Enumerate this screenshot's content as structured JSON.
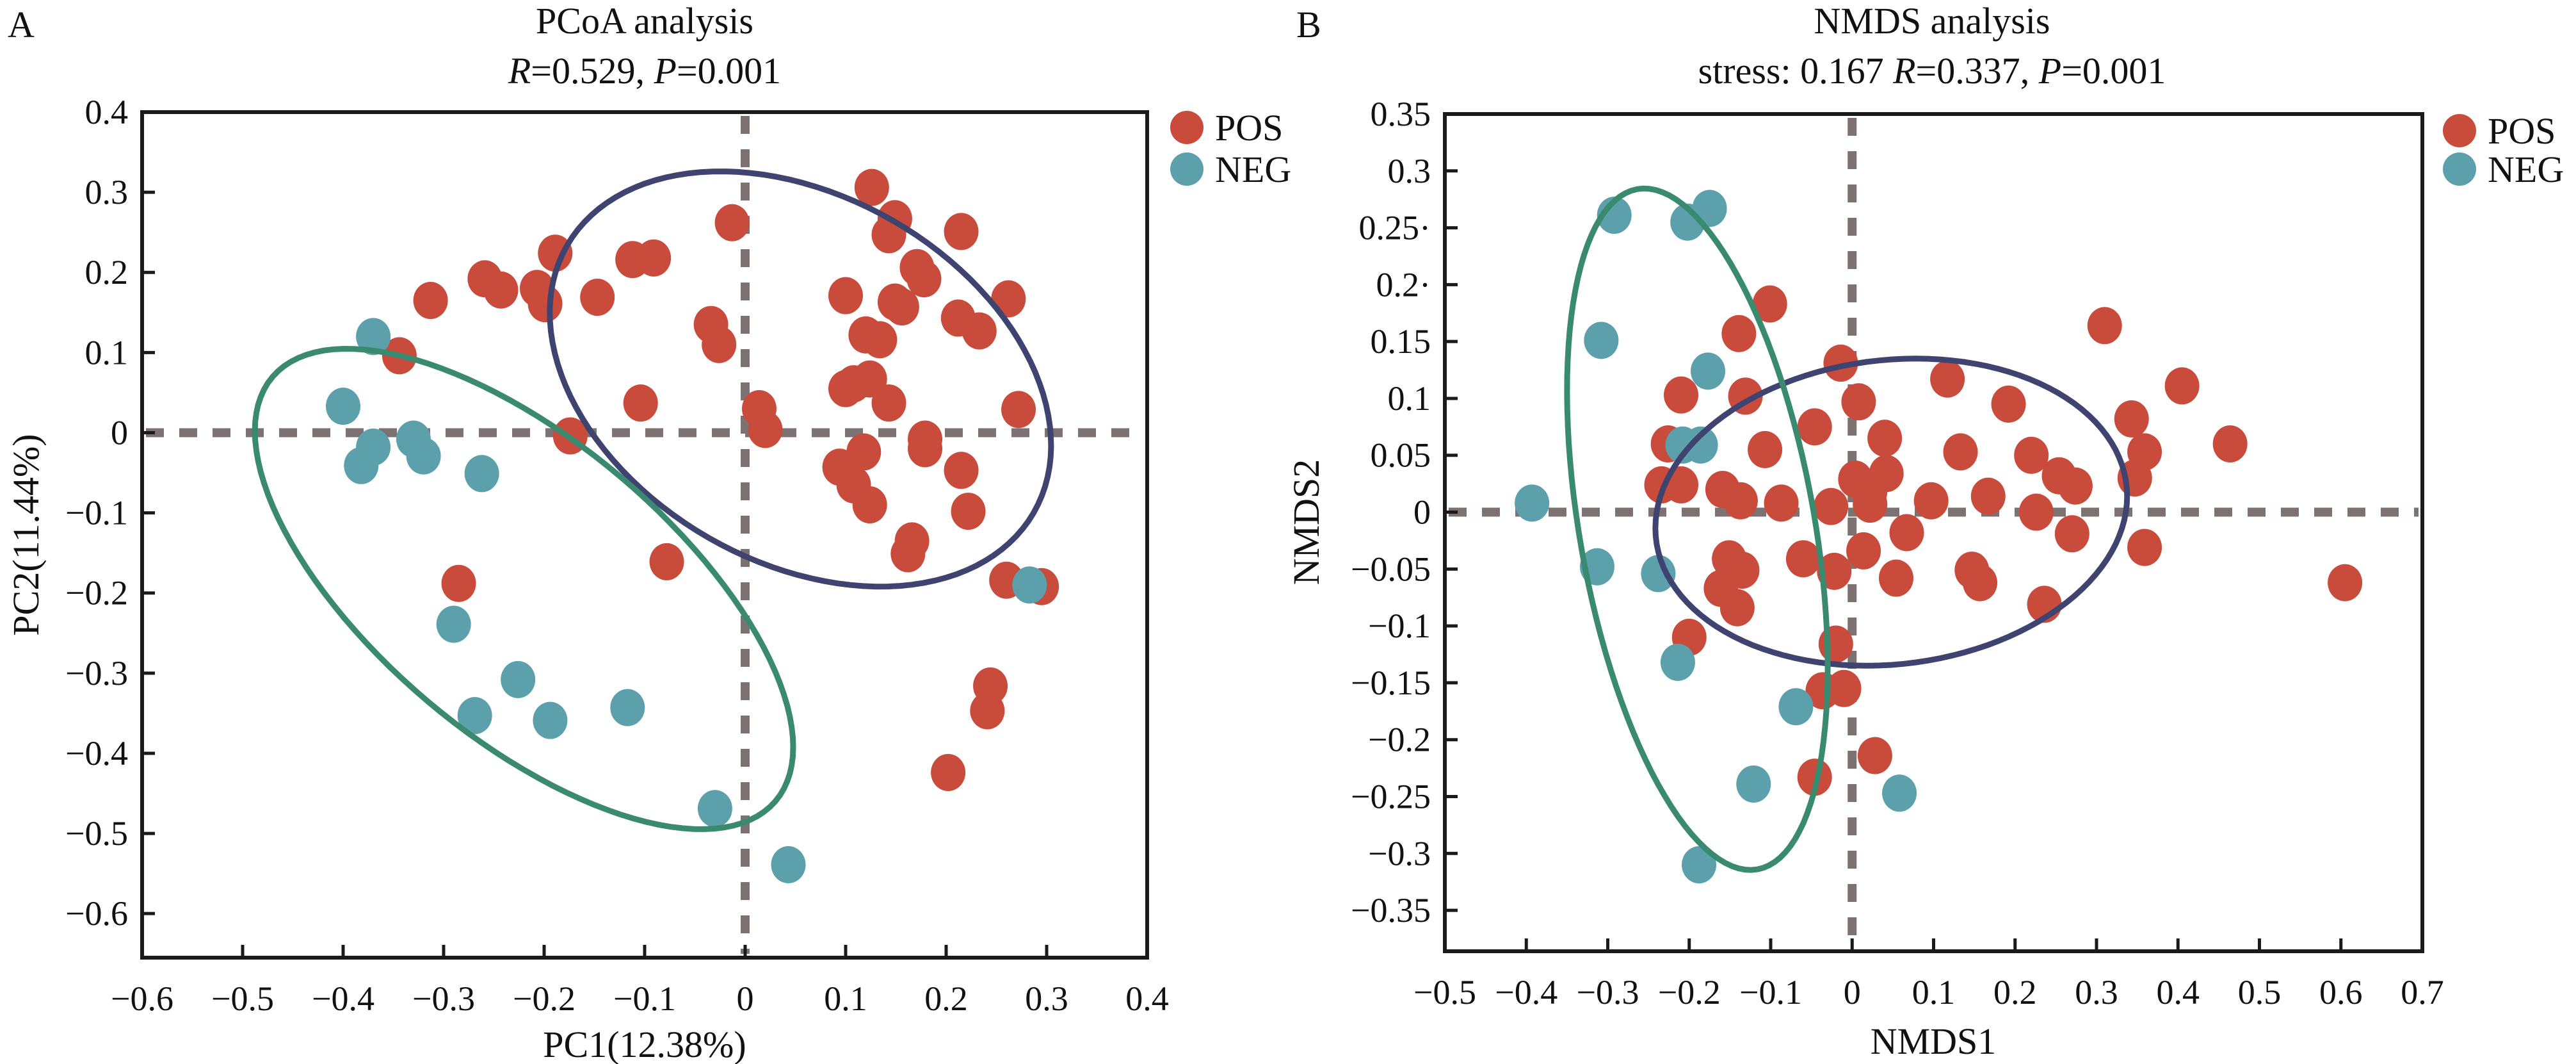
{
  "colors": {
    "pos": "#c84b3c",
    "neg": "#5ba0ab",
    "pos_ellipse": "#3f4370",
    "neg_ellipse": "#3a8a70",
    "zero_line": "#7d7272"
  },
  "legend": {
    "pos": "POS",
    "neg": "NEG"
  },
  "chart_data": [
    {
      "type": "scatter",
      "panel_label": "A",
      "title": "PCoA analysis",
      "subtitle": {
        "r_label": "R",
        "r_value": "=0.529, ",
        "p_label": "P",
        "p_value": "=0.001"
      },
      "xlabel": "PC1(12.38%)",
      "ylabel": "PC2(11.44%)",
      "xlim": [
        -0.6,
        0.4
      ],
      "ylim": [
        -0.655,
        0.4
      ],
      "xticks": [
        -0.6,
        -0.5,
        -0.4,
        -0.3,
        -0.2,
        -0.1,
        0,
        0.1,
        0.2,
        0.3,
        0.4
      ],
      "xtick_labels": [
        "−0.6",
        "−0.5",
        "−0.4",
        "−0.3",
        "−0.2",
        "−0.1",
        "0",
        "0.1",
        "0.2",
        "0.3",
        "0.4"
      ],
      "yticks": [
        0.4,
        0.3,
        0.2,
        0.1,
        0,
        -0.1,
        -0.2,
        -0.3,
        -0.4,
        -0.5,
        -0.6
      ],
      "ytick_labels": [
        "0.4",
        "0.3",
        "0.2",
        "0.1",
        "0",
        "−0.1",
        "−0.2",
        "−0.3",
        "−0.4",
        "−0.5",
        "−0.6"
      ],
      "grid": false,
      "legend_position": "outside-top-right",
      "reference_lines": {
        "x": 0,
        "y": 0
      },
      "series": [
        {
          "name": "POS",
          "points": [
            [
              -0.313,
              0.165
            ],
            [
              -0.259,
              0.192
            ],
            [
              -0.243,
              0.178
            ],
            [
              -0.207,
              0.18
            ],
            [
              -0.199,
              0.161
            ],
            [
              -0.189,
              0.224
            ],
            [
              -0.147,
              0.169
            ],
            [
              -0.112,
              0.216
            ],
            [
              -0.091,
              0.218
            ],
            [
              -0.013,
              0.262
            ],
            [
              -0.034,
              0.135
            ],
            [
              -0.026,
              0.11
            ],
            [
              -0.344,
              0.096
            ],
            [
              -0.174,
              -0.004
            ],
            [
              -0.104,
              0.037
            ],
            [
              0.014,
              0.03
            ],
            [
              0.02,
              0.004
            ],
            [
              0.126,
              0.306
            ],
            [
              0.149,
              0.267
            ],
            [
              0.143,
              0.247
            ],
            [
              0.215,
              0.251
            ],
            [
              0.171,
              0.206
            ],
            [
              0.178,
              0.192
            ],
            [
              0.149,
              0.163
            ],
            [
              0.156,
              0.157
            ],
            [
              0.1,
              0.171
            ],
            [
              0.212,
              0.143
            ],
            [
              0.233,
              0.127
            ],
            [
              0.262,
              0.167
            ],
            [
              0.12,
              0.122
            ],
            [
              0.134,
              0.116
            ],
            [
              0.1,
              0.055
            ],
            [
              0.108,
              0.061
            ],
            [
              0.124,
              0.067
            ],
            [
              0.143,
              0.037
            ],
            [
              0.272,
              0.029
            ],
            [
              0.179,
              -0.008
            ],
            [
              0.179,
              -0.02
            ],
            [
              0.118,
              -0.024
            ],
            [
              0.094,
              -0.043
            ],
            [
              0.108,
              -0.065
            ],
            [
              0.124,
              -0.09
            ],
            [
              0.215,
              -0.047
            ],
            [
              0.222,
              -0.098
            ],
            [
              0.166,
              -0.135
            ],
            [
              0.162,
              -0.151
            ],
            [
              -0.078,
              -0.161
            ],
            [
              -0.285,
              -0.188
            ],
            [
              0.26,
              -0.184
            ],
            [
              0.295,
              -0.192
            ],
            [
              0.244,
              -0.316
            ],
            [
              0.241,
              -0.347
            ],
            [
              0.202,
              -0.424
            ]
          ]
        },
        {
          "name": "NEG",
          "points": [
            [
              -0.37,
              0.12
            ],
            [
              -0.4,
              0.033
            ],
            [
              -0.37,
              -0.018
            ],
            [
              -0.382,
              -0.041
            ],
            [
              -0.33,
              -0.008
            ],
            [
              -0.32,
              -0.029
            ],
            [
              -0.262,
              -0.051
            ],
            [
              -0.29,
              -0.239
            ],
            [
              -0.269,
              -0.353
            ],
            [
              -0.226,
              -0.308
            ],
            [
              -0.194,
              -0.359
            ],
            [
              -0.117,
              -0.343
            ],
            [
              -0.03,
              -0.469
            ],
            [
              0.043,
              -0.539
            ],
            [
              0.283,
              -0.19
            ]
          ]
        }
      ],
      "ellipses": [
        {
          "group": "POS",
          "center": [
            0.055,
            0.067
          ],
          "u": [
            0.232,
            -0.167
          ],
          "v": [
            0.0915,
            0.198
          ]
        },
        {
          "group": "NEG",
          "center": [
            -0.22,
            -0.195
          ],
          "u": [
            0.25,
            -0.265
          ],
          "v": [
            0.096,
            0.14
          ]
        }
      ]
    },
    {
      "type": "scatter",
      "panel_label": "B",
      "title": "NMDS analysis",
      "subtitle": {
        "stress": "stress: 0.167 ",
        "r_label": "R",
        "r_value": "=0.337, ",
        "p_label": "P",
        "p_value": "=0.001"
      },
      "xlabel": "NMDS1",
      "ylabel": "NMDS2",
      "xlim": [
        -0.5,
        0.7
      ],
      "ylim": [
        -0.386,
        0.35
      ],
      "xticks": [
        -0.5,
        -0.4,
        -0.3,
        -0.2,
        -0.1,
        0,
        0.1,
        0.2,
        0.3,
        0.4,
        0.5,
        0.6,
        0.7
      ],
      "xtick_labels": [
        "−0.5",
        "−0.4",
        "−0.3",
        "−0.2",
        "−0.1",
        "0",
        "0.1",
        "0.2",
        "0.3",
        "0.4",
        "0.5",
        "0.6",
        "0.7"
      ],
      "yticks": [
        0.35,
        0.3,
        0.25,
        0.2,
        0.15,
        0.1,
        0.05,
        0,
        -0.05,
        -0.1,
        -0.15,
        -0.2,
        -0.25,
        -0.3,
        -0.35
      ],
      "ytick_labels": [
        "0.35",
        "0.3",
        "0.25·",
        "0.2·",
        "0.15",
        "0.1",
        "0.05",
        "0",
        "−0.05",
        "−0.1",
        "−0.15",
        "−0.2",
        "−0.25",
        "−0.3",
        "−0.35"
      ],
      "grid": false,
      "legend_position": "outside-top-right",
      "reference_lines": {
        "x": 0,
        "y": 0
      },
      "series": [
        {
          "name": "POS",
          "points": [
            [
              -0.101,
              0.183
            ],
            [
              -0.139,
              0.157
            ],
            [
              -0.014,
              0.131
            ],
            [
              -0.131,
              0.102
            ],
            [
              -0.21,
              0.103
            ],
            [
              0.008,
              0.097
            ],
            [
              -0.046,
              0.075
            ],
            [
              -0.107,
              0.055
            ],
            [
              -0.226,
              0.06
            ],
            [
              -0.234,
              0.024
            ],
            [
              -0.21,
              0.024
            ],
            [
              -0.159,
              0.02
            ],
            [
              -0.137,
              0.01
            ],
            [
              -0.087,
              0.008
            ],
            [
              0.004,
              0.029
            ],
            [
              0.022,
              0.018
            ],
            [
              0.022,
              0.007
            ],
            [
              -0.026,
              0.005
            ],
            [
              0.04,
              0.065
            ],
            [
              0.042,
              0.034
            ],
            [
              0.097,
              0.01
            ],
            [
              0.067,
              -0.018
            ],
            [
              0.117,
              0.117
            ],
            [
              0.192,
              0.095
            ],
            [
              0.133,
              0.053
            ],
            [
              0.22,
              0.05
            ],
            [
              0.254,
              0.032
            ],
            [
              0.274,
              0.023
            ],
            [
              0.343,
              0.082
            ],
            [
              0.359,
              0.053
            ],
            [
              0.347,
              0.03
            ],
            [
              0.167,
              0.014
            ],
            [
              0.226,
              0.0
            ],
            [
              0.27,
              -0.019
            ],
            [
              0.359,
              -0.031
            ],
            [
              0.147,
              -0.051
            ],
            [
              0.157,
              -0.062
            ],
            [
              0.236,
              -0.081
            ],
            [
              0.31,
              0.164
            ],
            [
              0.405,
              0.111
            ],
            [
              0.464,
              0.06
            ],
            [
              0.605,
              -0.062
            ],
            [
              0.014,
              -0.034
            ],
            [
              0.054,
              -0.058
            ],
            [
              -0.06,
              -0.041
            ],
            [
              -0.022,
              -0.052
            ],
            [
              -0.151,
              -0.041
            ],
            [
              -0.135,
              -0.051
            ],
            [
              -0.161,
              -0.067
            ],
            [
              -0.141,
              -0.084
            ],
            [
              -0.2,
              -0.11
            ],
            [
              -0.02,
              -0.116
            ],
            [
              -0.036,
              -0.157
            ],
            [
              -0.01,
              -0.155
            ],
            [
              0.028,
              -0.214
            ],
            [
              -0.046,
              -0.233
            ]
          ]
        },
        {
          "name": "NEG",
          "points": [
            [
              -0.292,
              0.261
            ],
            [
              -0.202,
              0.255
            ],
            [
              -0.175,
              0.267
            ],
            [
              -0.308,
              0.151
            ],
            [
              -0.177,
              0.124
            ],
            [
              -0.208,
              0.059
            ],
            [
              -0.186,
              0.059
            ],
            [
              -0.393,
              0.008
            ],
            [
              -0.313,
              -0.048
            ],
            [
              -0.238,
              -0.054
            ],
            [
              -0.214,
              -0.132
            ],
            [
              -0.069,
              -0.171
            ],
            [
              -0.121,
              -0.239
            ],
            [
              0.058,
              -0.247
            ],
            [
              -0.188,
              -0.31
            ]
          ]
        }
      ],
      "ellipses": [
        {
          "group": "POS",
          "center": [
            0.048,
            0.0
          ],
          "u": [
            0.288,
            0.0
          ],
          "v": [
            0.03,
            0.135
          ]
        },
        {
          "group": "NEG",
          "center": [
            -0.19,
            -0.015
          ],
          "u": [
            0.0737,
            -0.299
          ],
          "v": [
            0.142,
            0.018
          ]
        }
      ]
    }
  ]
}
